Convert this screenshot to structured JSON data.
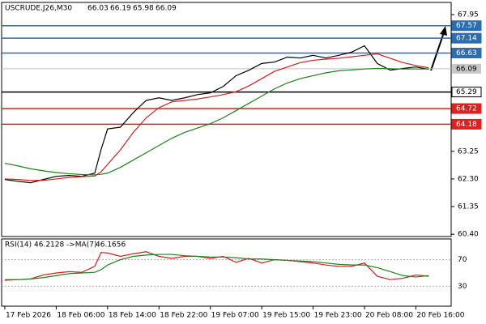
{
  "chart_data": {
    "type": "line",
    "symbol": "USCRUDE.J26,M30",
    "ohlc": [
      66.03,
      66.19,
      65.98,
      66.09
    ],
    "x": [
      0,
      4,
      8,
      12,
      16,
      20,
      24,
      28,
      30,
      32,
      36,
      40,
      44,
      48,
      52,
      56,
      60,
      64,
      68,
      72,
      76,
      80,
      84,
      88,
      92,
      96,
      100,
      104,
      108,
      112,
      116,
      120,
      124,
      128,
      132
    ],
    "xlim": [
      -1,
      139
    ],
    "xticks": [
      {
        "value": 0,
        "label": "17 Feb 2026"
      },
      {
        "value": 16,
        "label": "18 Feb 06:00"
      },
      {
        "value": 32,
        "label": "18 Feb 14:00"
      },
      {
        "value": 48,
        "label": "18 Feb 22:00"
      },
      {
        "value": 64,
        "label": "19 Feb 07:00"
      },
      {
        "value": 80,
        "label": "19 Feb 15:00"
      },
      {
        "value": 96,
        "label": "19 Feb 23:00"
      },
      {
        "value": 112,
        "label": "20 Feb 08:00"
      },
      {
        "value": 128,
        "label": "20 Feb 16:00"
      }
    ],
    "ylim": [
      60.32,
      68.37
    ],
    "yticks": [
      67.95,
      63.25,
      {
        "value": 62.3,
        "label": "62.30"
      },
      61.35,
      {
        "value": 60.4,
        "label": "60.40"
      }
    ],
    "series": [
      {
        "color": "#000000",
        "values": [
          62.28,
          62.22,
          62.17,
          62.28,
          62.39,
          62.42,
          62.39,
          62.5,
          63.32,
          64.02,
          64.08,
          64.58,
          65.0,
          65.09,
          65.0,
          65.09,
          65.2,
          65.26,
          65.48,
          65.85,
          66.04,
          66.27,
          66.32,
          66.49,
          66.46,
          66.55,
          66.46,
          66.55,
          66.66,
          66.88,
          66.27,
          66.04,
          66.1,
          66.15,
          66.07
        ]
      },
      {
        "color": "#d02020",
        "values": [
          62.3,
          62.28,
          62.25,
          62.25,
          62.3,
          62.35,
          62.38,
          62.4,
          62.55,
          62.8,
          63.3,
          63.9,
          64.4,
          64.75,
          64.95,
          65.0,
          65.05,
          65.12,
          65.2,
          65.3,
          65.5,
          65.75,
          66.0,
          66.15,
          66.3,
          66.38,
          66.42,
          66.45,
          66.5,
          66.55,
          66.6,
          66.45,
          66.3,
          66.2,
          66.12
        ]
      },
      {
        "color": "#208020",
        "values": [
          62.84,
          62.75,
          62.65,
          62.58,
          62.52,
          62.48,
          62.45,
          62.44,
          62.46,
          62.5,
          62.7,
          62.95,
          63.2,
          63.45,
          63.7,
          63.9,
          64.05,
          64.2,
          64.4,
          64.65,
          64.9,
          65.15,
          65.4,
          65.6,
          65.75,
          65.85,
          65.95,
          66.02,
          66.05,
          66.08,
          66.1,
          66.09,
          66.08,
          66.08,
          66.08
        ]
      }
    ],
    "levels": [
      {
        "value": 67.57,
        "color": "#2a6db0",
        "text_color": "#ffffff"
      },
      {
        "value": 67.14,
        "color": "#2a6db0",
        "text_color": "#ffffff"
      },
      {
        "value": 66.63,
        "color": "#2a6db0",
        "text_color": "#ffffff"
      },
      {
        "value": 65.29,
        "color": "#000000",
        "text_color": "#000000"
      },
      {
        "value": 64.72,
        "color": "#e02020",
        "text_color": "#ffffff"
      },
      {
        "value": 64.18,
        "color": "#e02020",
        "text_color": "#ffffff"
      }
    ],
    "current_price": 66.09,
    "rsi": {
      "label": "RSI(14)",
      "value": 46.2128,
      "ma_label": "->MA(7)",
      "ma_value": 46.1656,
      "ylim": [
        0,
        100
      ],
      "yticks": [
        70,
        30
      ],
      "series": [
        {
          "color": "#d02020",
          "values": [
            39,
            40,
            41,
            47,
            50,
            52,
            51,
            60,
            81,
            80,
            75,
            79,
            82,
            75,
            72,
            75,
            75,
            72,
            75,
            66,
            72,
            65,
            70,
            69,
            67,
            65,
            62,
            60,
            60,
            65,
            45,
            40,
            42,
            47,
            45
          ]
        },
        {
          "color": "#208020",
          "values": [
            40,
            40,
            41,
            43,
            46,
            49,
            50,
            51,
            55,
            62,
            70,
            75,
            77,
            78,
            78,
            76,
            75,
            74,
            74,
            73,
            71,
            71,
            70,
            69,
            68,
            67,
            65,
            63,
            62,
            62,
            58,
            52,
            46,
            44,
            46
          ]
        }
      ]
    }
  }
}
